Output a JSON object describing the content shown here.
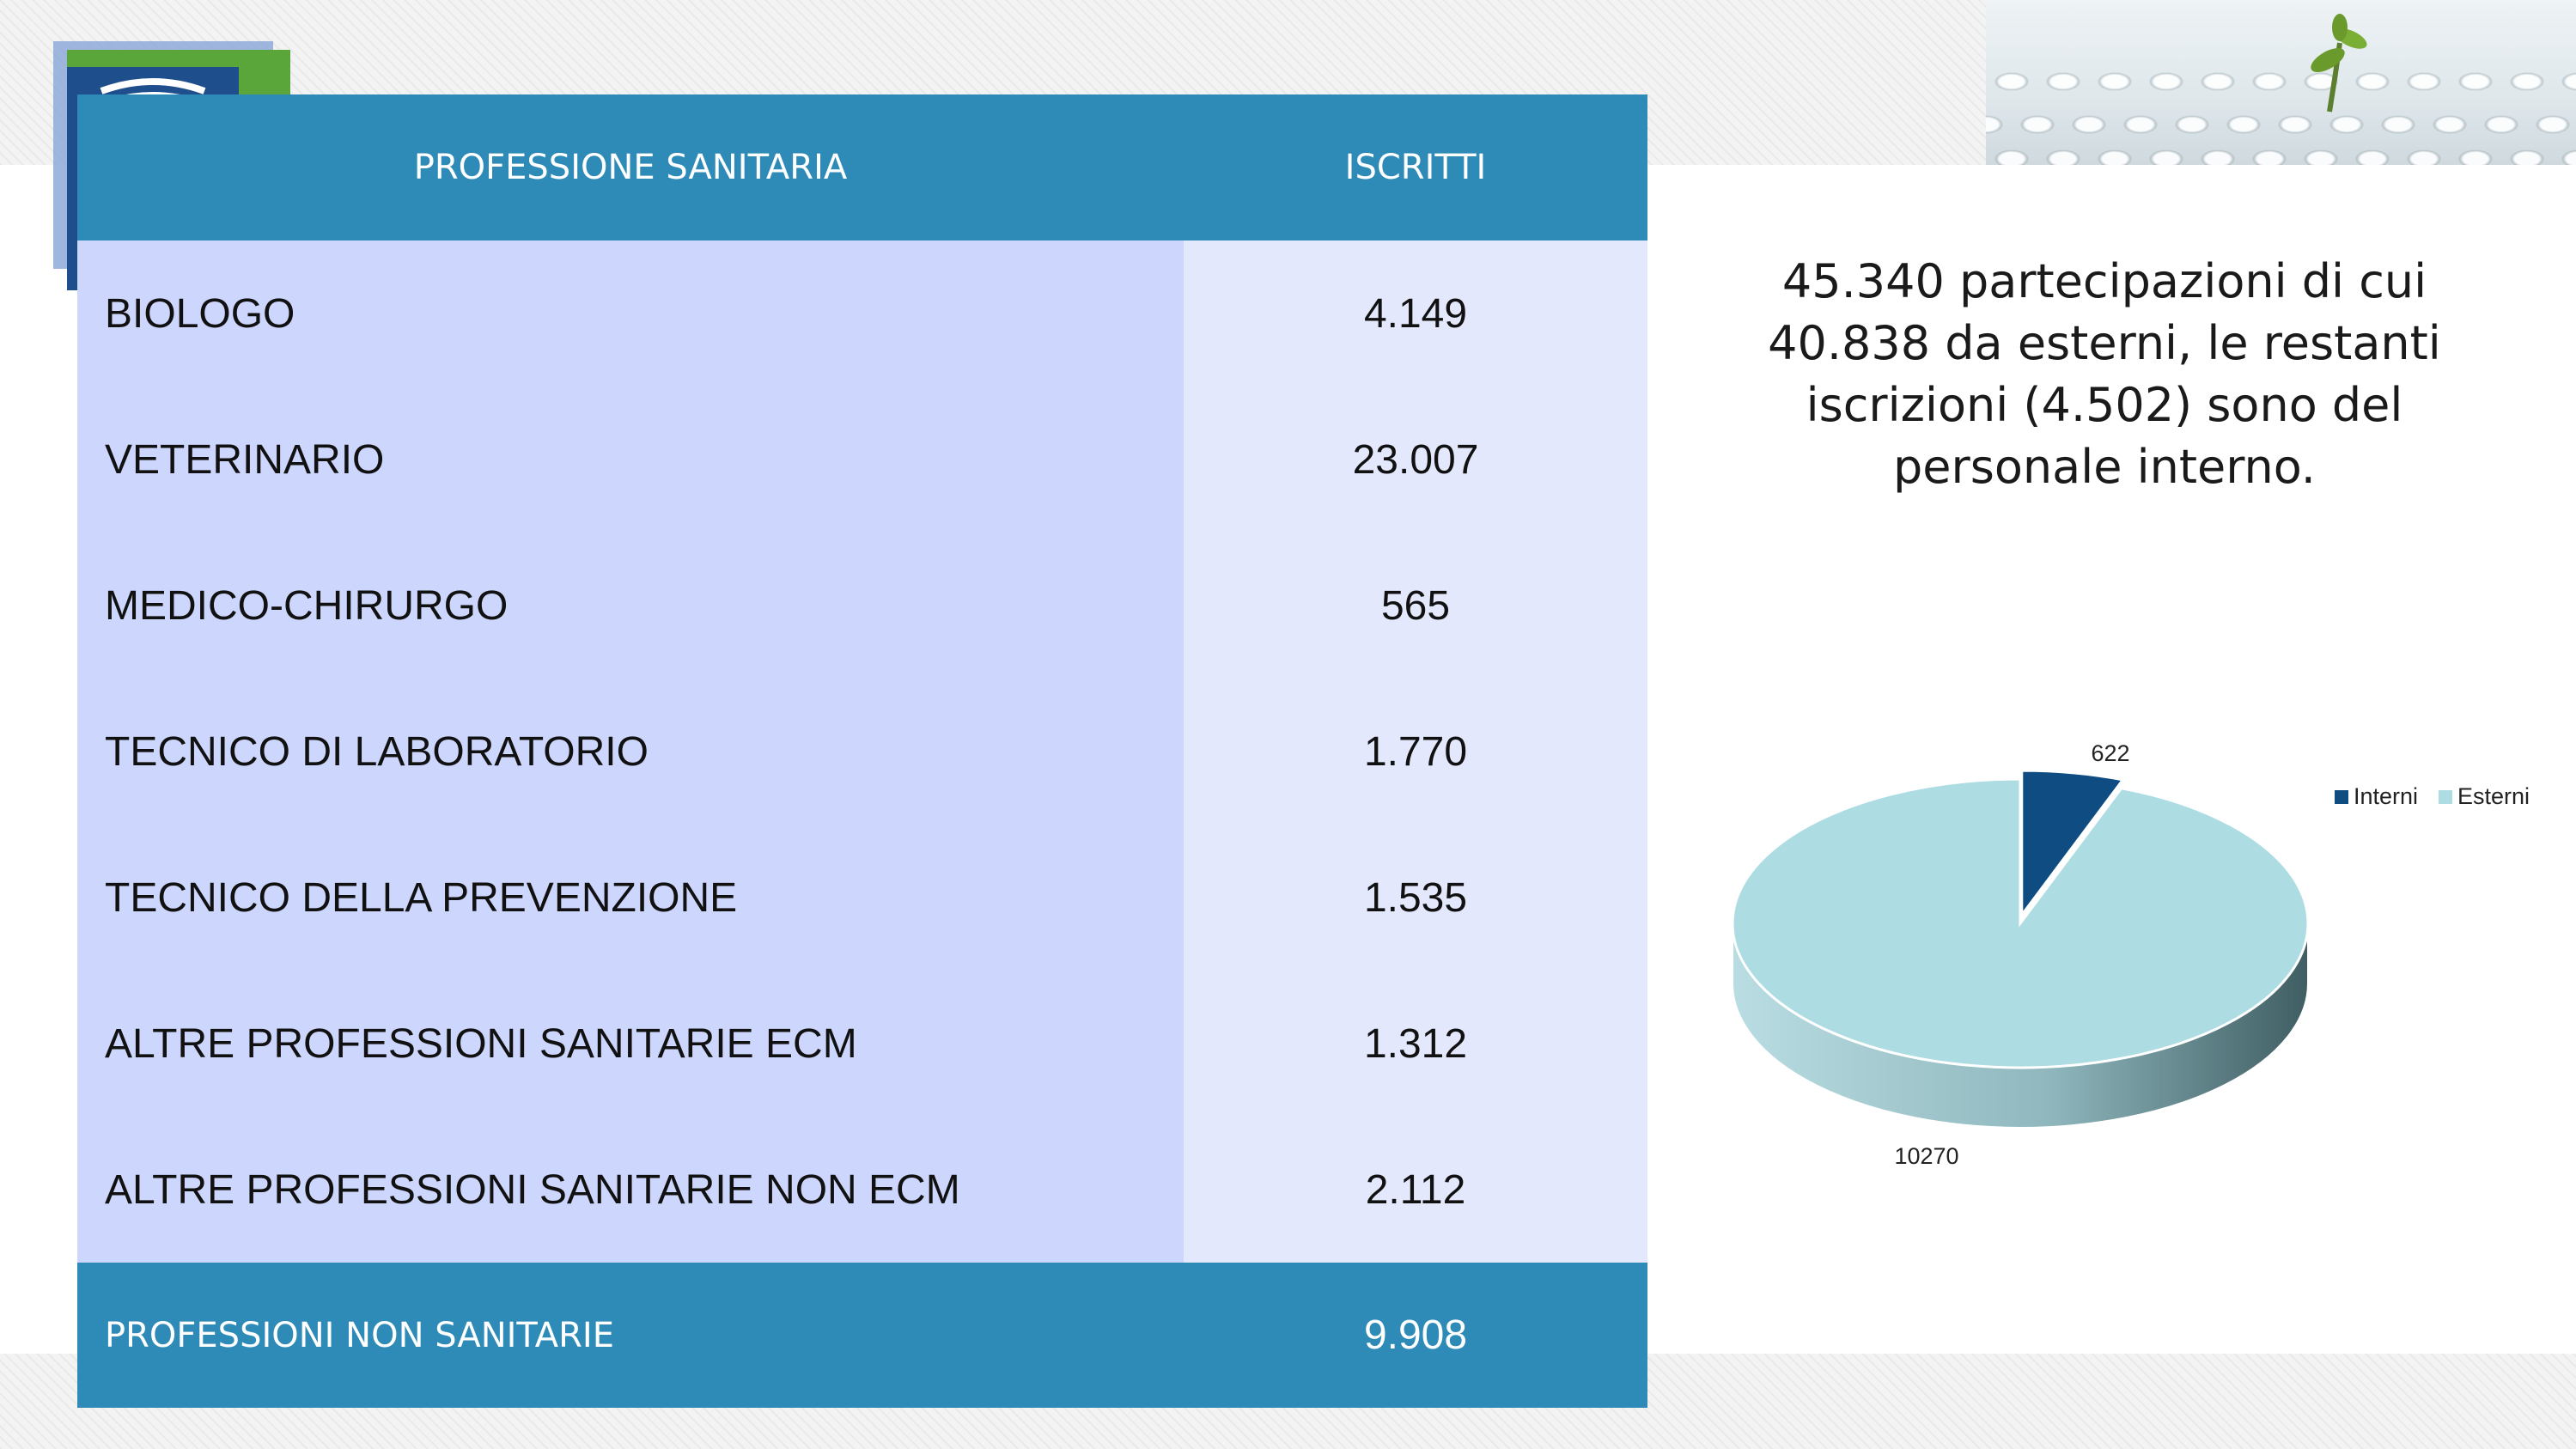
{
  "table": {
    "header": {
      "profession": "PROFESSIONE SANITARIA",
      "enrolled": "ISCRITTI"
    },
    "rows": [
      {
        "profession": "BIOLOGO",
        "enrolled": "4.149"
      },
      {
        "profession": "VETERINARIO",
        "enrolled": "23.007"
      },
      {
        "profession": "MEDICO-CHIRURGO",
        "enrolled": "565"
      },
      {
        "profession": "TECNICO DI LABORATORIO",
        "enrolled": "1.770"
      },
      {
        "profession": "TECNICO DELLA PREVENZIONE",
        "enrolled": "1.535"
      },
      {
        "profession": "ALTRE PROFESSIONI SANITARIE ECM",
        "enrolled": "1.312"
      },
      {
        "profession": "ALTRE PROFESSIONI SANITARIE NON ECM",
        "enrolled": "2.112"
      }
    ],
    "footer": {
      "profession": "PROFESSIONI NON SANITARIE",
      "enrolled": "9.908"
    }
  },
  "summary": {
    "lines": [
      "45.340 partecipazioni di cui",
      "40.838 da esterni, le restanti",
      "iscrizioni (4.502) sono del",
      "personale interno."
    ]
  },
  "colors": {
    "header_blue": "#2e8bb8",
    "row_name_bg": "#cdd6fd",
    "row_value_bg": "#e3e8fd",
    "pie_interni": "#0f4c81",
    "pie_esterni": "#addde3"
  },
  "chart_data": {
    "type": "pie",
    "title": "",
    "categories": [
      "Interni",
      "Esterni"
    ],
    "values": [
      622,
      10270
    ],
    "data_labels": [
      "622",
      "10270"
    ],
    "legend": {
      "position": "top-right",
      "entries": [
        "Interni",
        "Esterni"
      ]
    },
    "style": "3d-exploded"
  }
}
